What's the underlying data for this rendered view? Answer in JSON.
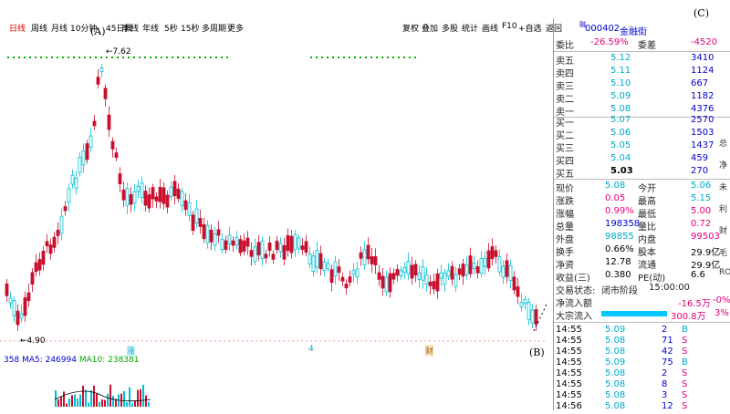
{
  "periods": [
    "日线",
    "周线",
    "月线",
    "10分钟",
    "45日线",
    "季线",
    "年线",
    "5秒",
    "15秒",
    "多周期",
    "更多"
  ],
  "active_period": 0,
  "tools": [
    "复权",
    "叠加",
    "多股",
    "统计",
    "画线",
    "F10",
    "+自选",
    "返回"
  ],
  "stock": {
    "code": "000402",
    "name": "金融街",
    "tag": "融"
  },
  "chart": {
    "high_label": "7.62",
    "low_label": "4.90",
    "ma_legend": {
      "prefix": "358",
      "ma5": "MA5: 246994",
      "ma10": "MA10: 238381"
    },
    "annotations": {
      "a": "(A)",
      "b": "(B)",
      "c": "(C)"
    },
    "date_marks": [
      "涨",
      "4",
      "财"
    ]
  },
  "chart_data": {
    "type": "candlestick",
    "title": "",
    "price_high": 7.62,
    "price_low": 4.9
  },
  "orderbook": {
    "weibi": {
      "label": "委比",
      "value": "-26.59%",
      "label2": "委差",
      "value2": "-4520"
    },
    "asks": [
      {
        "label": "卖五",
        "price": "5.12",
        "vol": "3410"
      },
      {
        "label": "卖四",
        "price": "5.11",
        "vol": "1124"
      },
      {
        "label": "卖三",
        "price": "5.10",
        "vol": "667"
      },
      {
        "label": "卖二",
        "price": "5.09",
        "vol": "1182"
      },
      {
        "label": "卖一",
        "price": "5.08",
        "vol": "4376"
      }
    ],
    "bids": [
      {
        "label": "买一",
        "price": "5.07",
        "vol": "2570"
      },
      {
        "label": "买二",
        "price": "5.06",
        "vol": "1503"
      },
      {
        "label": "买三",
        "price": "5.05",
        "vol": "1437"
      },
      {
        "label": "买四",
        "price": "5.04",
        "vol": "459"
      },
      {
        "label": "买五",
        "price": "5.03",
        "vol": "270"
      }
    ]
  },
  "quote": [
    {
      "l1": "现价",
      "v1": "5.08",
      "c1": "cyan",
      "l2": "今开",
      "v2": "5.06",
      "c2": "cyan"
    },
    {
      "l1": "涨跌",
      "v1": "0.05",
      "c1": "pink",
      "l2": "最高",
      "v2": "5.15",
      "c2": "cyan"
    },
    {
      "l1": "涨幅",
      "v1": "0.99%",
      "c1": "pink",
      "l2": "最低",
      "v2": "5.00",
      "c2": "pink"
    },
    {
      "l1": "总量",
      "v1": "198358",
      "c1": "blue",
      "l2": "量比",
      "v2": "0.72",
      "c2": "pink"
    },
    {
      "l1": "外盘",
      "v1": "98855",
      "c1": "cyan",
      "l2": "内盘",
      "v2": "99503",
      "c2": "pink"
    },
    {
      "l1": "换手",
      "v1": "0.66%",
      "c1": "blk",
      "l2": "股本",
      "v2": "29.9亿",
      "c2": "blk"
    },
    {
      "l1": "净资",
      "v1": "12.78",
      "c1": "blk",
      "l2": "流通",
      "v2": "29.9亿",
      "c2": "blk"
    },
    {
      "l1": "收益(三)",
      "v1": "0.380",
      "c1": "blk",
      "l2": "PE(动)",
      "v2": "6.6",
      "c2": "blk"
    }
  ],
  "trade_status": {
    "label": "交易状态:",
    "value": "闭市阶段",
    "time": "15:00:00"
  },
  "net_flow": {
    "label": "净流入额",
    "value": "-16.5万",
    "pct": "-0%"
  },
  "big_flow": {
    "label": "大宗流入",
    "value": "300.8万",
    "pct": "3%"
  },
  "ticks": [
    {
      "t": "14:55",
      "p": "5.09",
      "v": "2",
      "s": "B"
    },
    {
      "t": "14:55",
      "p": "5.08",
      "v": "71",
      "s": "S"
    },
    {
      "t": "14:55",
      "p": "5.08",
      "v": "42",
      "s": "S"
    },
    {
      "t": "14:55",
      "p": "5.09",
      "v": "75",
      "s": "B"
    },
    {
      "t": "14:55",
      "p": "5.08",
      "v": "2",
      "s": "S"
    },
    {
      "t": "14:55",
      "p": "5.08",
      "v": "8",
      "s": "S"
    },
    {
      "t": "14:55",
      "p": "5.08",
      "v": "3",
      "s": "S"
    },
    {
      "t": "14:56",
      "p": "5.08",
      "v": "12",
      "s": "S"
    }
  ],
  "side_strip": [
    "总",
    "净",
    "未",
    "利",
    "财",
    "毛",
    "RO"
  ]
}
